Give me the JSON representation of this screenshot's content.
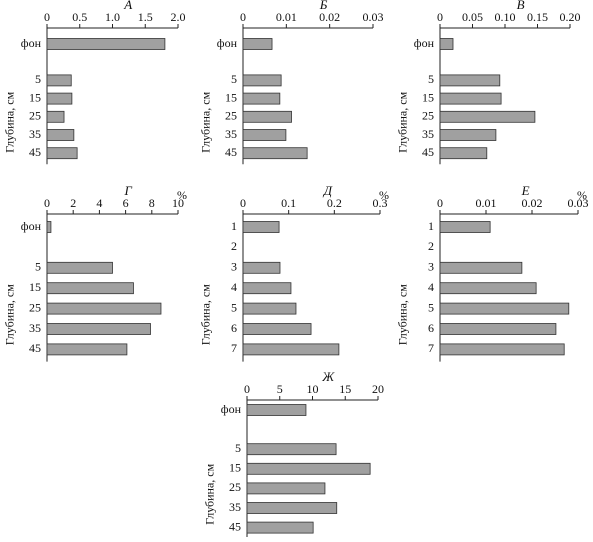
{
  "chart_data": [
    {
      "type": "bar",
      "title": "А",
      "y_label": "Глубина, см",
      "categories": [
        "фон",
        null,
        "5",
        "15",
        "25",
        "35",
        "45"
      ],
      "values": [
        1.8,
        null,
        0.37,
        0.38,
        0.26,
        0.41,
        0.46
      ],
      "color": "#a0a0a0",
      "xlim": [
        0,
        2
      ],
      "xticks": [
        0,
        0.5,
        {
          "value": 1,
          "label": "1.0"
        },
        1.5,
        {
          "value": 2,
          "label": "2.0"
        }
      ]
    },
    {
      "type": "bar",
      "title": "Б",
      "y_label": "Глубина, см",
      "categories": [
        "фон",
        null,
        "5",
        "15",
        "25",
        "35",
        "45"
      ],
      "values": [
        0.0067,
        null,
        0.0088,
        0.0085,
        0.0112,
        0.0099,
        0.0148
      ],
      "color": "#a0a0a0",
      "xlim": [
        0,
        0.03
      ],
      "xticks": [
        0,
        0.01,
        0.02,
        0.03
      ]
    },
    {
      "type": "bar",
      "title": "В",
      "y_label": "Глубина, см",
      "categories": [
        "фон",
        null,
        "5",
        "15",
        "25",
        "35",
        "45"
      ],
      "values": [
        0.02,
        null,
        0.092,
        0.094,
        0.146,
        0.086,
        0.072
      ],
      "color": "#a0a0a0",
      "xlim": [
        0,
        0.2
      ],
      "xticks": [
        0,
        0.05,
        {
          "value": 0.1,
          "label": "0.10"
        },
        0.15,
        {
          "value": 0.2,
          "label": "0.20"
        }
      ]
    },
    {
      "type": "bar",
      "title": "Г",
      "unit": "%",
      "y_label": "Глубина, см",
      "categories": [
        "фон",
        null,
        "5",
        "15",
        "25",
        "35",
        "45"
      ],
      "values": [
        0.3,
        null,
        5.0,
        6.6,
        8.7,
        7.9,
        6.1
      ],
      "color": "#a0a0a0",
      "xlim": [
        0,
        10
      ],
      "xticks": [
        0,
        2,
        4,
        6,
        8,
        10
      ]
    },
    {
      "type": "bar",
      "title": "Д",
      "unit": "%",
      "y_label": "Глубина, см",
      "categories": [
        "1",
        "2",
        "3",
        "4",
        "5",
        "6",
        "7"
      ],
      "values": [
        0.079,
        null,
        0.081,
        0.105,
        0.116,
        0.149,
        0.21
      ],
      "color": "#a0a0a0",
      "xlim": [
        0,
        0.3
      ],
      "xticks": [
        0,
        0.1,
        0.2,
        0.3
      ]
    },
    {
      "type": "bar",
      "title": "Е",
      "unit": "%",
      "y_label": "Глубина, см",
      "categories": [
        "1",
        "2",
        "3",
        "4",
        "5",
        "6",
        "7"
      ],
      "values": [
        0.0109,
        null,
        0.0178,
        0.0209,
        0.028,
        0.0252,
        0.027
      ],
      "color": "#a0a0a0",
      "xlim": [
        0,
        0.03
      ],
      "xticks": [
        0,
        0.01,
        0.02,
        0.03
      ]
    },
    {
      "type": "bar",
      "title": "Ж",
      "y_label": "Глубина, см",
      "categories": [
        "фон",
        null,
        "5",
        "15",
        "25",
        "35",
        "45"
      ],
      "values": [
        9.0,
        null,
        13.6,
        18.8,
        11.9,
        13.7,
        10.1
      ],
      "color": "#a0a0a0",
      "xlim": [
        0,
        20
      ],
      "xticks": [
        0,
        5,
        10,
        15,
        20
      ]
    }
  ]
}
